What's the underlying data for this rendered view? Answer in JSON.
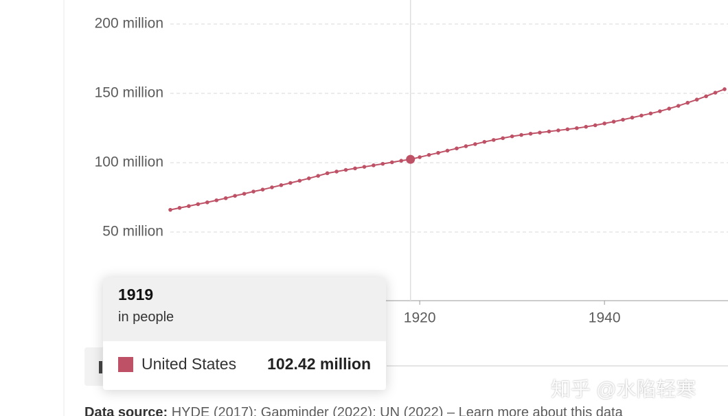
{
  "chart_data": {
    "type": "line",
    "x": [
      1893,
      1894,
      1895,
      1896,
      1897,
      1898,
      1899,
      1900,
      1901,
      1902,
      1903,
      1904,
      1905,
      1906,
      1907,
      1908,
      1909,
      1910,
      1911,
      1912,
      1913,
      1914,
      1915,
      1916,
      1917,
      1918,
      1919,
      1920,
      1921,
      1922,
      1923,
      1924,
      1925,
      1926,
      1927,
      1928,
      1929,
      1930,
      1931,
      1932,
      1933,
      1934,
      1935,
      1936,
      1937,
      1938,
      1939,
      1940,
      1941,
      1942,
      1943,
      1944,
      1945,
      1946,
      1947,
      1948,
      1949,
      1950,
      1951,
      1952,
      1953
    ],
    "series": [
      {
        "name": "United States",
        "color": "#be5165",
        "values": [
          66.0,
          67.4,
          68.7,
          70.1,
          71.4,
          72.9,
          74.4,
          76.1,
          77.6,
          79.2,
          80.6,
          82.2,
          83.8,
          85.4,
          87.0,
          88.7,
          90.5,
          92.4,
          93.6,
          94.8,
          95.9,
          97.0,
          98.1,
          99.2,
          100.3,
          101.4,
          102.42,
          104.0,
          105.6,
          107.1,
          108.7,
          110.3,
          111.9,
          113.4,
          115.0,
          116.4,
          117.7,
          119.0,
          120.0,
          120.9,
          121.7,
          122.5,
          123.3,
          124.1,
          124.9,
          125.9,
          127.0,
          128.3,
          129.6,
          131.0,
          132.5,
          134.0,
          135.5,
          137.1,
          139.0,
          141.0,
          143.2,
          145.5,
          147.9,
          150.5,
          153.0
        ]
      }
    ],
    "xlim": [
      1893,
      1953
    ],
    "xticks": [
      1920,
      1940
    ],
    "ylim": [
      0,
      200
    ],
    "yticks": [
      {
        "value": 50,
        "label": "50 million"
      },
      {
        "value": 100,
        "label": "100 million"
      },
      {
        "value": 150,
        "label": "150 million"
      },
      {
        "value": 200,
        "label": "200 million"
      }
    ],
    "grid": true,
    "tooltip": {
      "year": "1919",
      "unit": "in people",
      "index": 26,
      "value_label": "102.42 million"
    },
    "source_label": "Data source:",
    "source": "HYDE (2017); Gapminder (2022); UN (2022) – Learn more about this data",
    "watermark": "知乎 @水陷轻寒"
  }
}
